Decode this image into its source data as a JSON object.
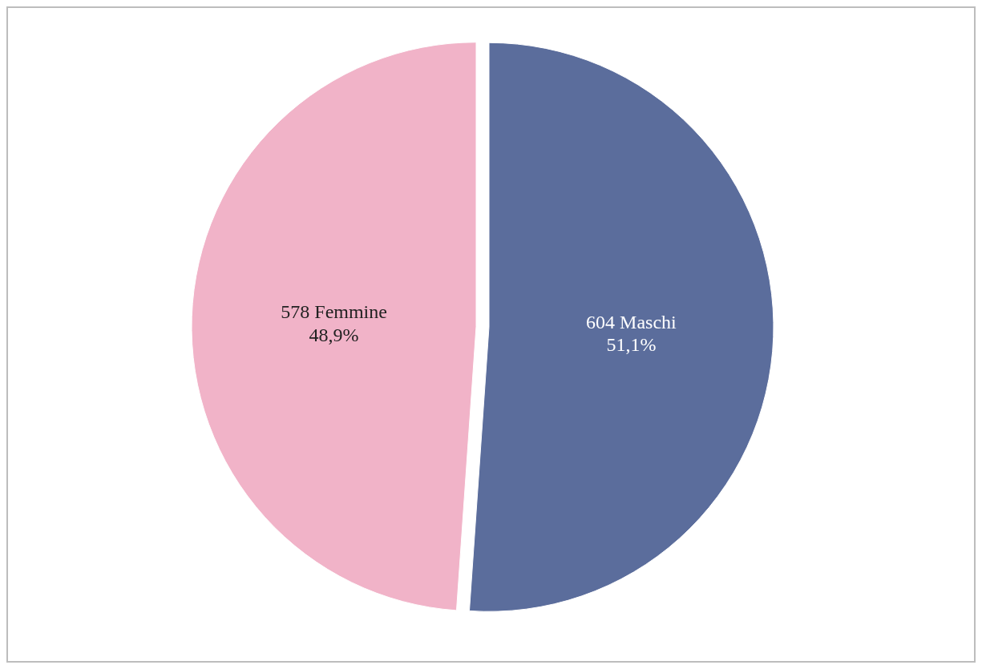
{
  "chart_data": {
    "type": "pie",
    "categories": [
      "604 Maschi",
      "578 Femmine"
    ],
    "values": [
      51.1,
      48.9
    ],
    "colors": [
      "#5b6d9c",
      "#f1b3c8"
    ],
    "value_labels": [
      "51,1%",
      "48,9%"
    ]
  }
}
